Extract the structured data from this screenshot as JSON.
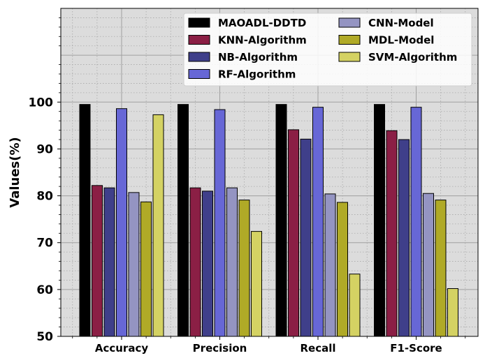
{
  "chart_data": {
    "type": "bar",
    "title": "",
    "xlabel": "",
    "ylabel": "Values(%)",
    "ylim": [
      50,
      120
    ],
    "yticks": [
      50,
      60,
      70,
      80,
      90,
      100
    ],
    "grid": true,
    "legend_position": "top-right",
    "categories": [
      "Accuracy",
      "Precision",
      "Recall",
      "F1-Score"
    ],
    "series": [
      {
        "name": "MAOADL-DDTD",
        "color": "#000000",
        "values": [
          99.5,
          99.5,
          99.5,
          99.5
        ]
      },
      {
        "name": "KNN-Algorithm",
        "color": "#8b1f45",
        "values": [
          82.2,
          81.7,
          94.1,
          93.9
        ]
      },
      {
        "name": "NB-Algorithm",
        "color": "#3f3f8a",
        "values": [
          81.7,
          81.0,
          92.1,
          92.0
        ]
      },
      {
        "name": "RF-Algorithm",
        "color": "#6767d6",
        "values": [
          98.6,
          98.4,
          98.9,
          98.9
        ]
      },
      {
        "name": "CNN-Model",
        "color": "#9494c2",
        "values": [
          80.7,
          81.7,
          80.4,
          80.5
        ]
      },
      {
        "name": "MDL-Model",
        "color": "#b0aa27",
        "values": [
          78.7,
          79.1,
          78.6,
          79.1
        ]
      },
      {
        "name": "SVM-Algorithm",
        "color": "#d4d263",
        "values": [
          97.3,
          72.4,
          63.3,
          60.2
        ]
      }
    ]
  }
}
